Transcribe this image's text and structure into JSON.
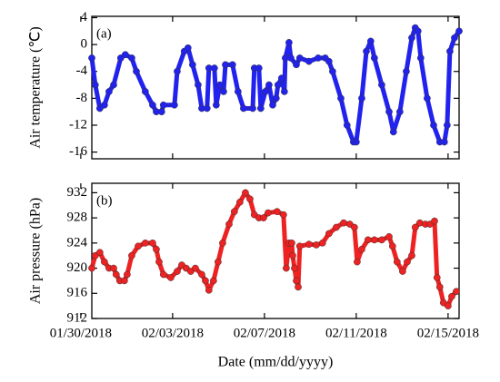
{
  "chart_data": [
    {
      "type": "scatter-line",
      "panel_label": "(a)",
      "y_label": "Air temperature (℃)",
      "series": [
        {
          "color": "#2222ee",
          "x": [
            0.48,
            0.63,
            0.83,
            1.03,
            1.23,
            1.43,
            1.74,
            1.94,
            2.22,
            2.42,
            2.81,
            3.13,
            3.29,
            3.52,
            3.6,
            4.08,
            4.2,
            4.51,
            4.67,
            4.87,
            5.11,
            5.27,
            5.5,
            5.58,
            5.82,
            5.9,
            6.06,
            6.22,
            6.3,
            6.61,
            6.85,
            7.09,
            7.49,
            7.56,
            7.76,
            7.84,
            8.04,
            8.2,
            8.36,
            8.51,
            8.59,
            8.75,
            8.87,
            8.91,
            9.07,
            9.15,
            9.39,
            9.54,
            9.94,
            10.34,
            10.65,
            10.81,
            10.97,
            11.33,
            11.6,
            11.88,
            12.0,
            12.24,
            12.44,
            12.63,
            12.79,
            13.11,
            13.43,
            13.62,
            13.9,
            14.18,
            14.42,
            14.57,
            14.69,
            14.81,
            15.09,
            15.37,
            15.64,
            15.84,
            15.96,
            16.08,
            16.28,
            16.48
          ],
          "values": [
            -2,
            -6,
            -9.5,
            -9,
            -7,
            -6,
            -2,
            -1.5,
            -2,
            -4,
            -7,
            -9,
            -10,
            -10,
            -9,
            -9,
            -4,
            -1,
            -0.5,
            -3,
            -6,
            -9.5,
            -9.5,
            -3.5,
            -3.5,
            -9,
            -6,
            -7,
            -3,
            -3,
            -7,
            -9.5,
            -9.5,
            -3.5,
            -3.5,
            -9.5,
            -7,
            -6,
            -9,
            -8,
            -6,
            -5,
            -7,
            -2,
            0.3,
            -2,
            -3,
            -2,
            -2.5,
            -2,
            -2,
            -2.5,
            -4,
            -8,
            -12,
            -14.5,
            -14.5,
            -8,
            -1,
            0.5,
            -2,
            -6,
            -10,
            -13,
            -10,
            -4,
            1,
            2.5,
            2,
            -2,
            -8,
            -12,
            -14.5,
            -14.5,
            -12,
            -1,
            1,
            2
          ]
        }
      ],
      "xlim": [
        0.48,
        16.48
      ],
      "ylim": [
        -17,
        4.2
      ],
      "yticks": [
        4,
        0,
        -4,
        -8,
        -12,
        -16
      ]
    },
    {
      "type": "scatter-line",
      "panel_label": "(b)",
      "y_label": "Air pressure (hPa)",
      "x_label": "Date (mm/dd/yyyy)",
      "series": [
        {
          "color": "#ee2222",
          "x": [
            0.48,
            0.63,
            0.83,
            1.03,
            1.23,
            1.43,
            1.54,
            1.7,
            1.9,
            2.02,
            2.22,
            2.5,
            2.81,
            3.13,
            3.29,
            3.41,
            3.6,
            3.92,
            4.2,
            4.4,
            4.59,
            4.79,
            4.99,
            5.27,
            5.43,
            5.58,
            5.78,
            5.98,
            6.18,
            6.46,
            6.69,
            6.93,
            7.17,
            7.37,
            7.56,
            7.76,
            7.96,
            8.16,
            8.55,
            8.83,
            8.95,
            9.07,
            9.19,
            9.23,
            9.31,
            9.39,
            9.47,
            9.54,
            9.94,
            10.26,
            10.53,
            10.81,
            11.13,
            11.45,
            11.72,
            11.92,
            12.04,
            12.24,
            12.51,
            12.79,
            13.11,
            13.43,
            13.58,
            13.78,
            14.02,
            14.22,
            14.42,
            14.57,
            14.77,
            15.01,
            15.21,
            15.41,
            15.52,
            15.64,
            15.8,
            16.0,
            16.16,
            16.36
          ],
          "values": [
            920,
            922,
            922.5,
            921,
            920,
            920,
            919,
            918,
            918,
            919,
            922,
            923.5,
            924,
            924,
            923,
            921,
            919,
            918.5,
            919.5,
            920.5,
            920,
            919.5,
            920,
            919,
            918,
            916.5,
            918,
            921,
            924,
            927,
            929,
            930.5,
            932,
            931,
            928.5,
            928,
            928,
            928.8,
            929,
            928.5,
            920,
            924,
            924,
            922,
            920,
            918,
            917,
            923.5,
            923.8,
            923.7,
            924,
            925.5,
            926.5,
            927.2,
            927,
            926.5,
            921,
            923,
            924.5,
            924.5,
            924.5,
            925,
            923.5,
            921,
            919.5,
            921,
            922,
            926.5,
            927.2,
            927,
            927,
            927.5,
            918.5,
            917,
            914.5,
            914,
            915.5,
            916.3
          ]
        }
      ],
      "xlim": [
        0.48,
        16.48
      ],
      "ylim": [
        912,
        933.5
      ],
      "yticks": [
        932,
        928,
        924,
        920,
        916,
        912
      ],
      "xticks": [
        {
          "value": 0,
          "label": "01/30/2018"
        },
        {
          "value": 4,
          "label": "02/03/2018"
        },
        {
          "value": 8,
          "label": "02/07/2018"
        },
        {
          "value": 12,
          "label": "02/11/2018"
        },
        {
          "value": 16,
          "label": "02/15/2018"
        }
      ]
    }
  ]
}
